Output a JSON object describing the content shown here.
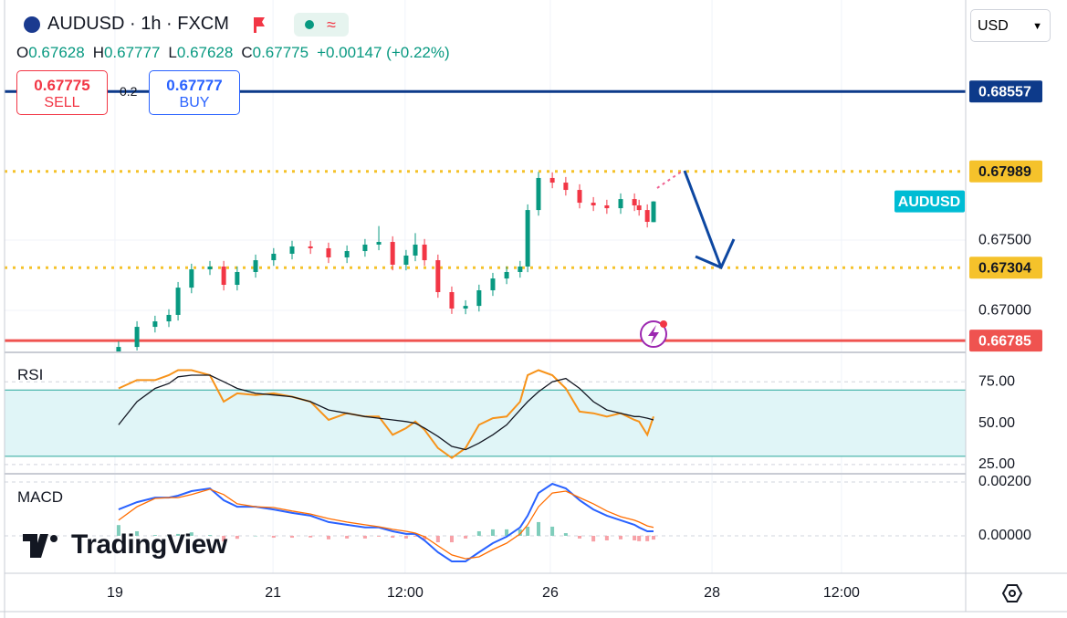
{
  "header": {
    "symbol": "AUDUSD · 1h · FXCM",
    "ohlc": [
      {
        "label": "O",
        "value": "0.67628"
      },
      {
        "label": "H",
        "value": "0.67777"
      },
      {
        "label": "L",
        "value": "0.67628"
      },
      {
        "label": "C",
        "value": "0.67775"
      }
    ],
    "change": "+0.00147 (+0.22%)"
  },
  "trade": {
    "sell_price": "0.67775",
    "sell": "SELL",
    "spread": "0.2",
    "buy_price": "0.67777",
    "buy": "BUY"
  },
  "currency": "USD",
  "logo": "TradingView",
  "chart_data": [
    {
      "type": "candlestick",
      "up_color": "#089981",
      "down_color": "#f23645",
      "last_label": "AUDUSD",
      "last_label_color": "#00bcd4",
      "xlim": [
        0,
        292.5
      ],
      "xticks": [
        {
          "value": 33.6,
          "label": "19"
        },
        {
          "value": 81.7,
          "label": "21"
        },
        {
          "value": 121.9,
          "label": "12:00"
        },
        {
          "value": 166.1,
          "label": "26"
        },
        {
          "value": 215.3,
          "label": "28"
        },
        {
          "value": 254.7,
          "label": "12:00"
        }
      ],
      "ylim": [
        0.66708,
        0.69208
      ],
      "yticks": [
        {
          "value": 0.675,
          "label": "0.67500"
        },
        {
          "value": 0.67,
          "label": "0.67000"
        }
      ],
      "grid": true,
      "levels": [
        {
          "value": 0.68557,
          "color": "#0d3a8a",
          "style": "solid"
        },
        {
          "value": 0.67989,
          "color": "#f5c22b",
          "style": "dotted"
        },
        {
          "value": 0.67304,
          "color": "#f5c22b",
          "style": "dotted"
        },
        {
          "value": 0.66785,
          "color": "#ef5350",
          "style": "solid"
        }
      ],
      "x": [
        34.7,
        40.3,
        45.8,
        50,
        52.8,
        56.9,
        62.5,
        66.7,
        70.8,
        76.4,
        81.9,
        87.5,
        93.1,
        98.6,
        104.2,
        109.7,
        113.9,
        118.1,
        122.2,
        125,
        127.8,
        131.9,
        136.1,
        140.3,
        144.4,
        148.6,
        152.8,
        156.9,
        159.2,
        162.5,
        166.7,
        170.8,
        175,
        179.2,
        183.3,
        187.5,
        191.7,
        193.1,
        195.6,
        197.5
      ],
      "open": [
        0.667,
        0.6674,
        0.66883,
        0.66922,
        0.66968,
        0.67162,
        0.67292,
        0.67312,
        0.67182,
        0.67273,
        0.67357,
        0.67403,
        0.67455,
        0.67442,
        0.67377,
        0.67422,
        0.67468,
        0.67487,
        0.67325,
        0.6739,
        0.67468,
        0.67357,
        0.6713,
        0.67013,
        0.67032,
        0.67143,
        0.67227,
        0.67273,
        0.67312,
        0.67714,
        0.67942,
        0.67909,
        0.67857,
        0.67766,
        0.67747,
        0.67727,
        0.67792,
        0.67747,
        0.67714,
        0.67628
      ],
      "high": [
        0.6678,
        0.66923,
        0.66962,
        0.67008,
        0.67202,
        0.67332,
        0.67352,
        0.67352,
        0.67313,
        0.67397,
        0.67443,
        0.67495,
        0.67495,
        0.67482,
        0.67462,
        0.67508,
        0.676,
        0.67527,
        0.6743,
        0.6755,
        0.67508,
        0.67397,
        0.6717,
        0.67072,
        0.67183,
        0.67267,
        0.67313,
        0.67352,
        0.67754,
        0.67985,
        0.67982,
        0.67949,
        0.67897,
        0.67806,
        0.67787,
        0.67832,
        0.67832,
        0.67787,
        0.67754,
        0.67777
      ],
      "low": [
        0.6671,
        0.66715,
        0.66843,
        0.66882,
        0.66928,
        0.67122,
        0.67252,
        0.67142,
        0.67142,
        0.67233,
        0.67317,
        0.67363,
        0.67402,
        0.67337,
        0.67337,
        0.67382,
        0.67428,
        0.67285,
        0.67285,
        0.6735,
        0.67317,
        0.6709,
        0.66975,
        0.66973,
        0.66992,
        0.67103,
        0.67187,
        0.67233,
        0.67272,
        0.67674,
        0.67869,
        0.67817,
        0.67726,
        0.67707,
        0.67687,
        0.67687,
        0.67707,
        0.67674,
        0.6759,
        0.67628
      ],
      "close": [
        0.6674,
        0.66883,
        0.66922,
        0.66968,
        0.67162,
        0.67292,
        0.67312,
        0.67182,
        0.67273,
        0.67357,
        0.67403,
        0.67455,
        0.67442,
        0.67377,
        0.67422,
        0.67468,
        0.67487,
        0.67325,
        0.6739,
        0.67468,
        0.67357,
        0.6713,
        0.67013,
        0.67032,
        0.67143,
        0.67227,
        0.67273,
        0.67312,
        0.67714,
        0.67942,
        0.67909,
        0.67857,
        0.67766,
        0.67747,
        0.67727,
        0.67792,
        0.67747,
        0.67714,
        0.6763,
        0.67775
      ]
    },
    {
      "type": "line",
      "title": "RSI",
      "xlim": [
        0,
        292.5
      ],
      "ylim": [
        20,
        91.67
      ],
      "yticks": [
        {
          "value": 75,
          "label": "75.00"
        },
        {
          "value": 50,
          "label": "50.00"
        },
        {
          "value": 25,
          "label": "25.00"
        }
      ],
      "band": [
        30,
        70
      ],
      "band_color": "#e0f5f7",
      "band_line_color": "#26a69a",
      "x": [
        34.7,
        40.3,
        45.8,
        50,
        52.8,
        56.9,
        62.5,
        66.7,
        70.8,
        76.4,
        81.9,
        87.5,
        93.1,
        98.6,
        104.2,
        109.7,
        113.9,
        118.1,
        122.2,
        125,
        127.8,
        131.9,
        136.1,
        140.3,
        144.4,
        148.6,
        152.8,
        156.9,
        159.2,
        162.5,
        166.7,
        170.8,
        175,
        179.2,
        183.3,
        187.5,
        191.7,
        193.1,
        195.6,
        197.5
      ],
      "series": [
        {
          "color": "#f7931a",
          "values": [
            71,
            76,
            76,
            79,
            82,
            82,
            79,
            63,
            68,
            67,
            68,
            66,
            63,
            52,
            56,
            54,
            54,
            43,
            47,
            51,
            46,
            35,
            29,
            35,
            49,
            53,
            54,
            63,
            79,
            82,
            79,
            71,
            57,
            56,
            54,
            56,
            52,
            51,
            43,
            54
          ]
        },
        {
          "color": "#131722",
          "values": [
            49,
            63,
            71,
            74,
            78,
            79,
            79,
            75,
            71,
            68,
            67,
            66,
            63,
            58,
            56,
            54,
            53,
            52,
            51,
            50,
            47,
            42,
            36,
            34,
            38,
            43,
            49,
            58,
            63,
            69,
            75,
            77,
            71,
            63,
            58,
            56,
            54,
            54,
            53,
            52
          ]
        }
      ]
    },
    {
      "type": "macd",
      "title": "MACD",
      "xlim": [
        0,
        292.5
      ],
      "ylim": [
        -0.00139,
        0.00227
      ],
      "yticks": [
        {
          "value": 0.002,
          "label": "0.00200"
        },
        {
          "value": 0,
          "label": "0.00000"
        }
      ],
      "x": [
        34.7,
        40.3,
        45.8,
        50,
        52.8,
        56.9,
        62.5,
        66.7,
        70.8,
        76.4,
        81.9,
        87.5,
        93.1,
        98.6,
        104.2,
        109.7,
        113.9,
        118.1,
        122.2,
        125,
        127.8,
        131.9,
        136.1,
        140.3,
        144.4,
        148.6,
        152.8,
        156.9,
        159.2,
        162.5,
        166.7,
        170.8,
        175,
        179.2,
        183.3,
        187.5,
        191.7,
        193.1,
        195.6,
        197.5
      ],
      "series": [
        {
          "color": "#2962ff",
          "values": [
            0.00098,
            0.00125,
            0.00142,
            0.00142,
            0.00149,
            0.00166,
            0.00176,
            0.00132,
            0.00108,
            0.00108,
            0.00098,
            0.00085,
            0.00075,
            0.00051,
            0.00041,
            0.00031,
            0.00031,
            0.00017,
            7e-05,
            7e-05,
            -0.00017,
            -0.00061,
            -0.00095,
            -0.00095,
            -0.00061,
            -0.00027,
            -3e-05,
            0.00031,
            0.00075,
            0.00159,
            0.00193,
            0.00176,
            0.00132,
            0.00098,
            0.00075,
            0.00058,
            0.00041,
            0.00031,
            0.00017,
            0.00017
          ]
        },
        {
          "color": "#ff6d00",
          "values": [
            0.00058,
            0.00108,
            0.00139,
            0.00142,
            0.00142,
            0.00153,
            0.00173,
            0.00153,
            0.00119,
            0.00108,
            0.00105,
            0.00092,
            0.00081,
            0.00064,
            0.00051,
            0.00041,
            0.00034,
            0.00024,
            0.00017,
            0.0001,
            -3e-05,
            -0.00037,
            -0.00071,
            -0.00085,
            -0.00078,
            -0.00051,
            -0.00027,
            7e-05,
            0.00041,
            0.00108,
            0.00159,
            0.00166,
            0.00142,
            0.00119,
            0.00092,
            0.00071,
            0.00058,
            0.00051,
            0.00037,
            0.00031
          ]
        }
      ],
      "histogram": [
        0.0004,
        0.00017,
        3e-05,
        0,
        7e-05,
        0.00013,
        3e-05,
        -0.00021,
        -0.00011,
        0,
        -7e-05,
        -7e-05,
        -6e-05,
        -0.00013,
        -0.0001,
        -0.0001,
        -3e-05,
        -7e-05,
        -0.0001,
        -3e-05,
        -0.00014,
        -0.00024,
        -0.00024,
        -0.0001,
        0.00017,
        0.00024,
        0.00024,
        0.00024,
        0.00034,
        0.00051,
        0.00034,
        0.0001,
        -0.0001,
        -0.00021,
        -0.00017,
        -0.00013,
        -0.00017,
        -0.0002,
        -0.0002,
        -0.00014
      ],
      "hist_up_color": "#7fcdbb",
      "hist_down_color": "#f7a1a7"
    }
  ]
}
